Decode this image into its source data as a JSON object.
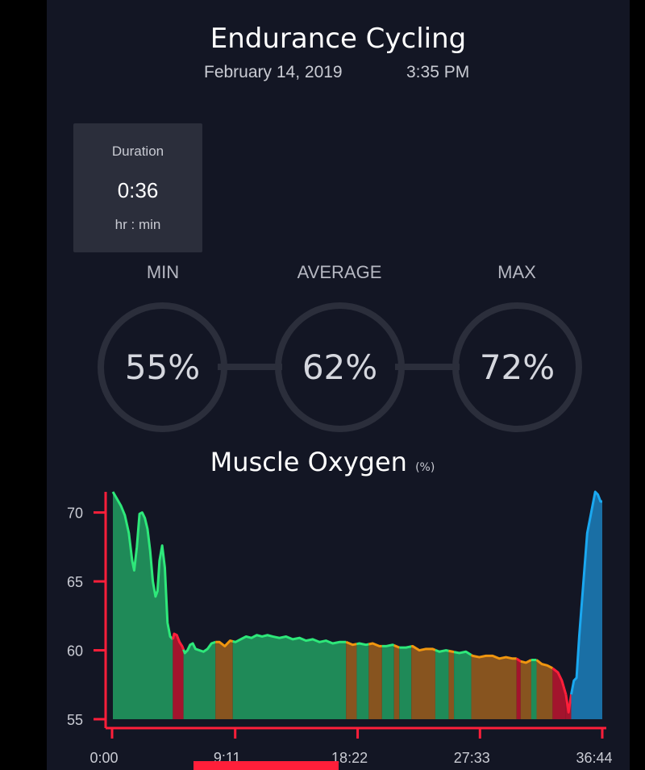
{
  "header": {
    "title": "Endurance Cycling",
    "date": "February 14, 2019",
    "time": "3:35 PM"
  },
  "duration": {
    "label": "Duration",
    "value": "0:36",
    "unit": "hr : min"
  },
  "stats": [
    {
      "label": "MIN",
      "value": "55%"
    },
    {
      "label": "AVERAGE",
      "value": "62%"
    },
    {
      "label": "MAX",
      "value": "72%"
    }
  ],
  "colors": {
    "background": "#131624",
    "card": "#2b2e3b",
    "axis": "#ff1f3a",
    "green": "#2ee87a",
    "green_fill": "#1f8a58",
    "orange": "#f0960f",
    "orange_fill": "#87541f",
    "red": "#ff1f3a",
    "red_fill": "#a3142d",
    "blue": "#1aa8f0",
    "blue_fill": "#1a6fa5"
  },
  "chart_data": {
    "type": "area",
    "title": "Muscle Oxygen",
    "title_unit": "(%)",
    "xlabel": "",
    "ylabel": "",
    "x_ticks": [
      "0:00",
      "9:11",
      "18:22",
      "27:33",
      "36:44"
    ],
    "x_tick_values": [
      0,
      9.18,
      18.37,
      27.55,
      36.73
    ],
    "y_ticks": [
      55,
      60,
      65,
      70
    ],
    "ylim": [
      55,
      71.5
    ],
    "xlim": [
      0,
      36.73
    ],
    "x_unit": "minutes",
    "series": [
      {
        "values_x": [
          0,
          0.3,
          0.6,
          0.9,
          1.2,
          1.45,
          1.6,
          1.8,
          2.0,
          2.2,
          2.4,
          2.6,
          2.8,
          3.0,
          3.2,
          3.35,
          3.5,
          3.7,
          3.9,
          4.1,
          4.3,
          4.5,
          4.6,
          4.8,
          5.0,
          5.2,
          5.4,
          5.6,
          5.8,
          6.0,
          6.2,
          6.5,
          6.8,
          7.1,
          7.4,
          7.7,
          8.0,
          8.4,
          8.8,
          9.2,
          9.6,
          10.0,
          10.4,
          10.8,
          11.2,
          11.6,
          12.0,
          12.5,
          13.0,
          13.5,
          14.0,
          14.5,
          15.0,
          15.5,
          16.0,
          16.5,
          17.0,
          17.5,
          18.0,
          18.5,
          19.0,
          19.5,
          20.0,
          20.5,
          21.0,
          21.5,
          22.0,
          22.5,
          23.0,
          23.5,
          24.0,
          24.5,
          25.0,
          25.5,
          26.0,
          26.5,
          27.0,
          27.5,
          28.0,
          28.5,
          29.0,
          29.5,
          30.0,
          30.3,
          30.6,
          31.0,
          31.4,
          31.8,
          32.2,
          32.6,
          33.0,
          33.4,
          33.7,
          34.0,
          34.2,
          34.4,
          34.6,
          34.8,
          35.0,
          35.2,
          35.4,
          35.6,
          35.8,
          36.0,
          36.2,
          36.4,
          36.6,
          36.73
        ],
        "values_y": [
          71.5,
          71.0,
          70.5,
          69.8,
          68.5,
          66.5,
          65.8,
          67.5,
          69.9,
          70.0,
          69.6,
          68.8,
          67.2,
          65.0,
          63.9,
          64.3,
          66.5,
          67.6,
          66.0,
          62.0,
          61.0,
          60.8,
          61.2,
          61.1,
          60.6,
          60.3,
          59.8,
          60.0,
          60.4,
          60.5,
          60.1,
          60.0,
          59.9,
          60.1,
          60.5,
          60.6,
          60.6,
          60.3,
          60.7,
          60.6,
          60.8,
          61.0,
          60.9,
          61.1,
          61.0,
          61.1,
          61.0,
          60.9,
          61.0,
          60.8,
          60.9,
          60.7,
          60.8,
          60.6,
          60.7,
          60.5,
          60.6,
          60.6,
          60.4,
          60.5,
          60.4,
          60.5,
          60.3,
          60.3,
          60.4,
          60.2,
          60.2,
          60.3,
          60.0,
          60.1,
          60.1,
          59.9,
          60.0,
          59.9,
          59.8,
          59.9,
          59.6,
          59.5,
          59.6,
          59.6,
          59.4,
          59.5,
          59.4,
          59.4,
          59.2,
          59.1,
          59.3,
          59.3,
          59.0,
          58.9,
          58.7,
          58.4,
          57.8,
          56.8,
          55.5,
          56.8,
          57.8,
          58.0,
          61.0,
          63.5,
          66.0,
          68.5,
          69.5,
          70.5,
          71.5,
          71.3,
          70.8,
          70.8
        ],
        "segments": [
          {
            "from": 0,
            "to": 4.5,
            "zone": "green"
          },
          {
            "from": 4.5,
            "to": 5.3,
            "zone": "red"
          },
          {
            "from": 5.3,
            "to": 7.7,
            "zone": "green"
          },
          {
            "from": 7.7,
            "to": 9.0,
            "zone": "orange"
          },
          {
            "from": 9.0,
            "to": 17.5,
            "zone": "green"
          },
          {
            "from": 17.5,
            "to": 18.3,
            "zone": "orange"
          },
          {
            "from": 18.3,
            "to": 19.2,
            "zone": "green"
          },
          {
            "from": 19.2,
            "to": 20.2,
            "zone": "orange"
          },
          {
            "from": 20.2,
            "to": 21.1,
            "zone": "green"
          },
          {
            "from": 21.1,
            "to": 21.5,
            "zone": "orange"
          },
          {
            "from": 21.5,
            "to": 22.4,
            "zone": "green"
          },
          {
            "from": 22.4,
            "to": 24.2,
            "zone": "orange"
          },
          {
            "from": 24.2,
            "to": 25.2,
            "zone": "green"
          },
          {
            "from": 25.2,
            "to": 25.6,
            "zone": "orange"
          },
          {
            "from": 25.6,
            "to": 26.9,
            "zone": "green"
          },
          {
            "from": 26.9,
            "to": 30.3,
            "zone": "orange"
          },
          {
            "from": 30.3,
            "to": 30.6,
            "zone": "red"
          },
          {
            "from": 30.6,
            "to": 31.4,
            "zone": "orange"
          },
          {
            "from": 31.4,
            "to": 31.8,
            "zone": "green"
          },
          {
            "from": 31.8,
            "to": 33.0,
            "zone": "orange"
          },
          {
            "from": 33.0,
            "to": 34.0,
            "zone": "red"
          },
          {
            "from": 34.0,
            "to": 34.4,
            "zone": "red"
          },
          {
            "from": 34.4,
            "to": 36.73,
            "zone": "blue"
          }
        ]
      }
    ]
  }
}
